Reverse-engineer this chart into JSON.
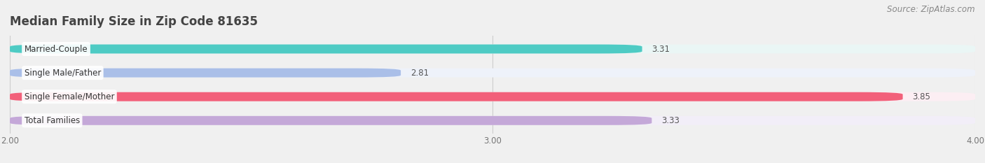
{
  "title": "Median Family Size in Zip Code 81635",
  "source": "Source: ZipAtlas.com",
  "categories": [
    "Married-Couple",
    "Single Male/Father",
    "Single Female/Mother",
    "Total Families"
  ],
  "values": [
    3.31,
    2.81,
    3.85,
    3.33
  ],
  "bar_colors": [
    "#4ECBC4",
    "#AABFE8",
    "#F2607A",
    "#C4A8D8"
  ],
  "bar_bg_colors": [
    "#EAF6F5",
    "#EEF2FA",
    "#FCEEF3",
    "#F2EEF8"
  ],
  "xlim": [
    2.0,
    4.0
  ],
  "xticks": [
    2.0,
    3.0,
    4.0
  ],
  "xtick_labels": [
    "2.00",
    "3.00",
    "4.00"
  ],
  "label_fontsize": 8.5,
  "value_fontsize": 8.5,
  "title_fontsize": 12,
  "source_fontsize": 8.5,
  "background_color": "#f0f0f0"
}
